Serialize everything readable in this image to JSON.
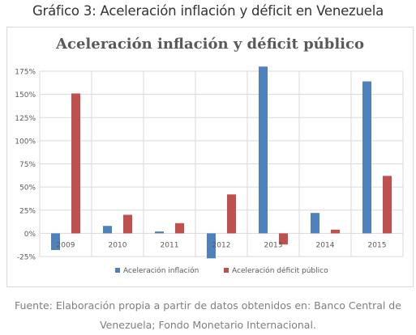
{
  "heading": "Gráfico 3: Aceleración inflación y déficit en Venezuela",
  "caption": {
    "line1": "Fuente: Elaboración propia a partir de datos obtenidos en: Banco Central de",
    "line2": "Venezuela; Fondo Monetario Internacional."
  },
  "colors": {
    "inflation": "#4F81BD",
    "deficit": "#C0504D",
    "grid": "#d9d9d9",
    "axis_text": "#595959"
  },
  "chart_data": {
    "type": "bar",
    "title": "Aceleración inflación y déficit público",
    "categories": [
      "2009",
      "2010",
      "2011",
      "2012",
      "2013",
      "2014",
      "2015"
    ],
    "series": [
      {
        "name": "Aceleración inflación",
        "values": [
          -18,
          8,
          2,
          -27,
          180,
          22,
          164
        ]
      },
      {
        "name": "Aceleración déficit público",
        "values": [
          151,
          20,
          11,
          42,
          -12,
          4,
          62
        ]
      }
    ],
    "yticks": [
      "175%",
      "150%",
      "125%",
      "100%",
      "75%",
      "50%",
      "25%",
      "0%",
      "-25%"
    ],
    "ylim": [
      -25,
      175
    ],
    "y_unit": "%",
    "grid": true,
    "legend_position": "bottom"
  }
}
